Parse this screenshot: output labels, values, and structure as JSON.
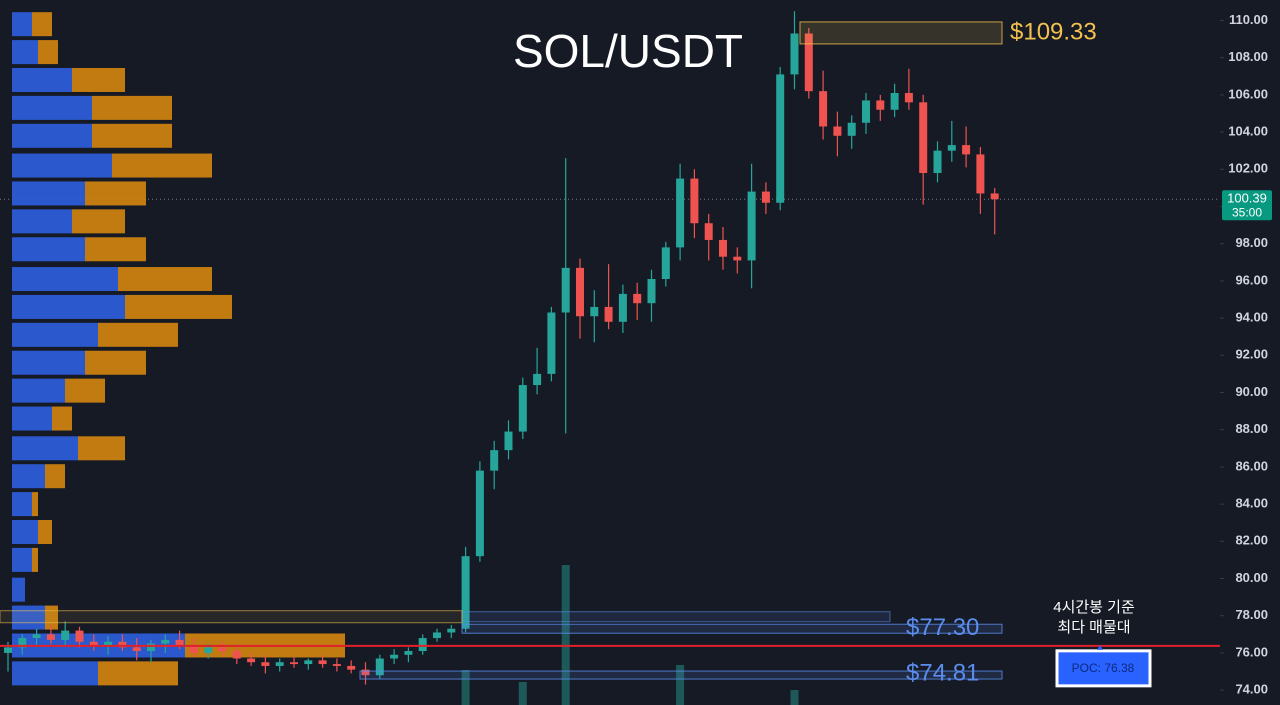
{
  "chart_data": {
    "type": "candlestick",
    "title": "SOL/USDT",
    "ylim": [
      73.2,
      111.1
    ],
    "yticks": [
      {
        "value": 74,
        "label": "74.00"
      },
      {
        "value": 76,
        "label": "76.00"
      },
      {
        "value": 78,
        "label": "78.00"
      },
      {
        "value": 80,
        "label": "80.00"
      },
      {
        "value": 82,
        "label": "82.00"
      },
      {
        "value": 84,
        "label": "84.00"
      },
      {
        "value": 86,
        "label": "86.00"
      },
      {
        "value": 88,
        "label": "88.00"
      },
      {
        "value": 90,
        "label": "90.00"
      },
      {
        "value": 92,
        "label": "92.00"
      },
      {
        "value": 94,
        "label": "94.00"
      },
      {
        "value": 96,
        "label": "96.00"
      },
      {
        "value": 98,
        "label": "98.00"
      },
      {
        "value": 100,
        "label": "100.00"
      },
      {
        "value": 102,
        "label": "102.00"
      },
      {
        "value": 104,
        "label": "104.00"
      },
      {
        "value": 106,
        "label": "106.00"
      },
      {
        "value": 108,
        "label": "108.00"
      },
      {
        "value": 110,
        "label": "110.00"
      }
    ],
    "up_color": "#26a69a",
    "down_color": "#ef5350",
    "candles": [
      [
        76,
        76.6,
        75,
        76.3
      ],
      [
        76.3,
        77,
        75.9,
        76.8
      ],
      [
        76.8,
        77.3,
        76.3,
        77
      ],
      [
        77,
        77.5,
        76.5,
        76.7
      ],
      [
        76.7,
        77.7,
        76.4,
        77.2
      ],
      [
        77.2,
        77.4,
        76.3,
        76.6
      ],
      [
        76.6,
        77,
        76.1,
        76.4
      ],
      [
        76.4,
        76.9,
        75.9,
        76.6
      ],
      [
        76.6,
        77,
        76.1,
        76.3
      ],
      [
        76.3,
        76.8,
        75.6,
        76.1
      ],
      [
        76.1,
        76.7,
        75.5,
        76.5
      ],
      [
        76.5,
        77,
        76,
        76.7
      ],
      [
        76.7,
        77.2,
        76.2,
        76.4
      ],
      [
        76.4,
        76.8,
        75.8,
        76
      ],
      [
        76,
        76.5,
        75.7,
        76.3
      ],
      [
        76.3,
        76.6,
        75.9,
        76.1
      ],
      [
        76.1,
        76.4,
        75.4,
        75.7
      ],
      [
        75.7,
        76,
        75.3,
        75.5
      ],
      [
        75.5,
        75.9,
        74.9,
        75.3
      ],
      [
        75.3,
        75.7,
        75,
        75.5
      ],
      [
        75.5,
        75.8,
        75.2,
        75.4
      ],
      [
        75.4,
        75.7,
        75.1,
        75.6
      ],
      [
        75.6,
        75.9,
        75.2,
        75.4
      ],
      [
        75.4,
        75.7,
        75,
        75.3
      ],
      [
        75.3,
        75.6,
        74.9,
        75.1
      ],
      [
        75.1,
        75.5,
        74.3,
        74.8
      ],
      [
        74.8,
        75.9,
        74.6,
        75.7
      ],
      [
        75.7,
        76.2,
        75.4,
        75.9
      ],
      [
        75.9,
        76.3,
        75.5,
        76.1
      ],
      [
        76.1,
        77,
        75.9,
        76.8
      ],
      [
        76.8,
        77.3,
        76.6,
        77.1
      ],
      [
        77.1,
        77.5,
        76.8,
        77.3
      ],
      [
        77.3,
        81.7,
        77.1,
        81.2
      ],
      [
        81.2,
        86.3,
        80.9,
        85.8
      ],
      [
        85.8,
        87.4,
        84.8,
        86.9
      ],
      [
        86.9,
        88.5,
        86.4,
        87.9
      ],
      [
        87.9,
        90.8,
        87.5,
        90.4
      ],
      [
        90.4,
        92.4,
        89.9,
        91
      ],
      [
        91,
        94.6,
        90.6,
        94.3
      ],
      [
        94.3,
        102.6,
        87.8,
        96.7
      ],
      [
        96.7,
        97.2,
        92.9,
        94.1
      ],
      [
        94.1,
        95.5,
        92.7,
        94.6
      ],
      [
        94.6,
        96.9,
        93.4,
        93.8
      ],
      [
        93.8,
        95.8,
        93.2,
        95.3
      ],
      [
        95.3,
        95.9,
        93.9,
        94.8
      ],
      [
        94.8,
        96.6,
        93.8,
        96.1
      ],
      [
        96.1,
        98.1,
        95.7,
        97.8
      ],
      [
        97.8,
        102.3,
        97.1,
        101.5
      ],
      [
        101.5,
        102,
        98.3,
        99.1
      ],
      [
        99.1,
        99.6,
        97.1,
        98.2
      ],
      [
        98.2,
        98.9,
        96.6,
        97.3
      ],
      [
        97.3,
        97.8,
        96.4,
        97.1
      ],
      [
        97.1,
        102.3,
        95.6,
        100.8
      ],
      [
        100.8,
        101.3,
        99.6,
        100.2
      ],
      [
        100.2,
        107.5,
        99.8,
        107.1
      ],
      [
        107.1,
        110.5,
        106.3,
        109.3
      ],
      [
        109.3,
        109.6,
        105.8,
        106.2
      ],
      [
        106.2,
        107.3,
        103.6,
        104.3
      ],
      [
        104.3,
        105.1,
        102.7,
        103.8
      ],
      [
        103.8,
        104.9,
        103.1,
        104.5
      ],
      [
        104.5,
        106.1,
        103.9,
        105.7
      ],
      [
        105.7,
        106,
        104.6,
        105.2
      ],
      [
        105.2,
        106.6,
        104.8,
        106.1
      ],
      [
        106.1,
        107.4,
        105.2,
        105.6
      ],
      [
        105.6,
        106,
        100.1,
        101.8
      ],
      [
        101.8,
        103.5,
        101.3,
        103
      ],
      [
        103,
        104.6,
        102.4,
        103.3
      ],
      [
        103.3,
        104.3,
        102.1,
        102.8
      ],
      [
        102.8,
        103.2,
        99.6,
        100.7
      ],
      [
        100.7,
        101,
        98.5,
        100.39
      ]
    ],
    "volume": [
      null,
      null,
      null,
      null,
      null,
      null,
      null,
      null,
      null,
      null,
      null,
      null,
      null,
      null,
      null,
      null,
      null,
      null,
      null,
      null,
      null,
      null,
      null,
      null,
      null,
      null,
      null,
      null,
      null,
      null,
      null,
      null,
      35,
      null,
      null,
      null,
      23,
      null,
      null,
      140,
      null,
      null,
      null,
      null,
      null,
      null,
      null,
      40,
      null,
      null,
      null,
      null,
      null,
      null,
      null,
      15,
      null,
      null,
      null,
      null,
      null,
      null,
      null,
      null,
      null,
      null,
      null,
      null,
      null,
      null
    ],
    "volume_profile": {
      "buy_color": "#2d5fe0",
      "sell_color": "#d4860f",
      "prices": [
        109.8,
        108.3,
        106.8,
        105.3,
        103.8,
        102.2,
        100.7,
        99.2,
        97.7,
        96.1,
        94.6,
        93.1,
        91.6,
        90.1,
        88.6,
        87,
        85.5,
        84,
        82.5,
        81,
        79.4,
        77.9,
        76.4,
        74.9
      ],
      "buy": [
        20,
        26,
        60,
        80,
        80,
        100,
        73,
        60,
        73,
        106,
        113,
        86,
        73,
        53,
        40,
        66,
        33,
        20,
        26,
        20,
        13,
        33,
        173,
        86
      ],
      "sell": [
        20,
        20,
        53,
        80,
        80,
        100,
        61,
        53,
        61,
        94,
        107,
        80,
        61,
        40,
        20,
        47,
        20,
        6,
        14,
        6,
        0,
        13,
        160,
        80
      ]
    },
    "last_price": {
      "value": 100.39,
      "label": "100.39"
    },
    "countdown": "35:00",
    "levels": [
      {
        "value": 109.33,
        "label": "$109.33",
        "color": "#f2c14e"
      },
      {
        "value": 77.3,
        "label": "$77.30",
        "color": "#5b8def"
      },
      {
        "value": 74.81,
        "label": "$74.81",
        "color": "#5b8def"
      }
    ],
    "poc": {
      "value": 76.38,
      "label": "POC: 76.38"
    },
    "note": [
      "4시간봉 기준",
      "최다 매물대"
    ]
  }
}
